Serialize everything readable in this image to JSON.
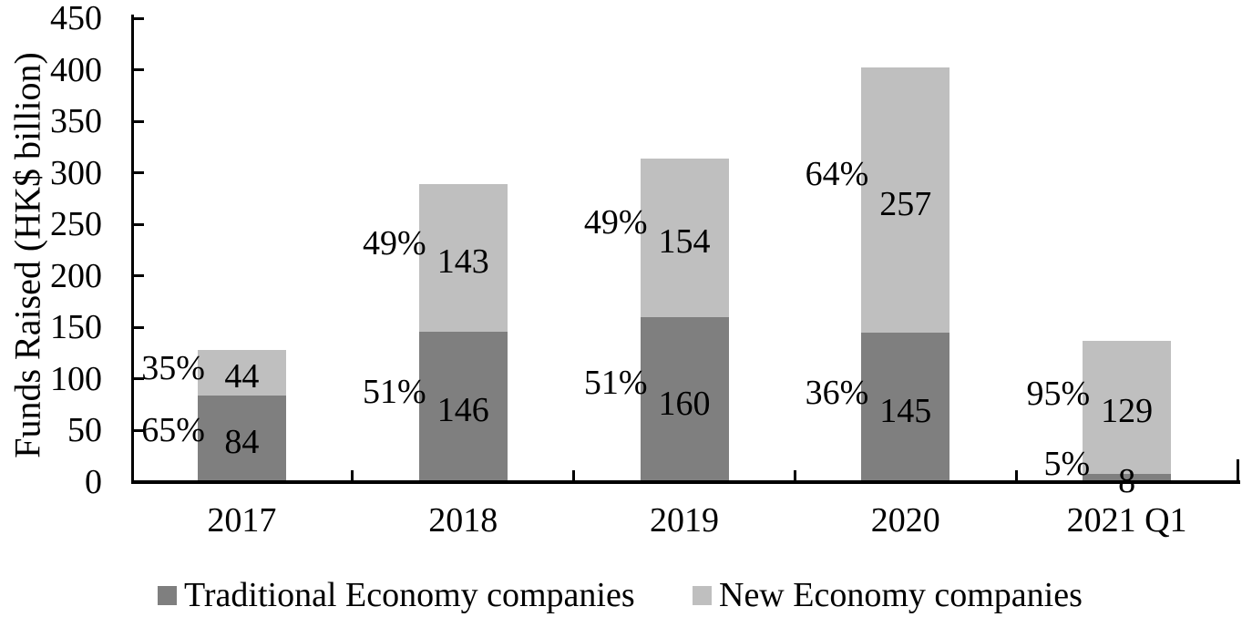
{
  "chart_data": {
    "type": "bar",
    "stacked": true,
    "title": "",
    "xlabel": "",
    "ylabel": "Funds Raised (HK$ billion)",
    "categories": [
      "2017",
      "2018",
      "2019",
      "2020",
      "2021 Q1"
    ],
    "series": [
      {
        "name": "Traditional Economy companies",
        "color": "#7f7f7f",
        "values": [
          84,
          146,
          160,
          145,
          8
        ],
        "pct_labels": [
          "65%",
          "51%",
          "51%",
          "36%",
          "5%"
        ]
      },
      {
        "name": "New Economy companies",
        "color": "#bfbfbf",
        "values": [
          44,
          143,
          154,
          257,
          129
        ],
        "pct_labels": [
          "35%",
          "49%",
          "49%",
          "64%",
          "95%"
        ]
      }
    ],
    "ylim": [
      0,
      450
    ],
    "yticks": [
      0,
      50,
      100,
      150,
      200,
      250,
      300,
      350,
      400,
      450
    ],
    "grid": false,
    "legend_position": "bottom",
    "axis_color": "#000000",
    "text_color": "#000000",
    "background_color": "#ffffff"
  }
}
